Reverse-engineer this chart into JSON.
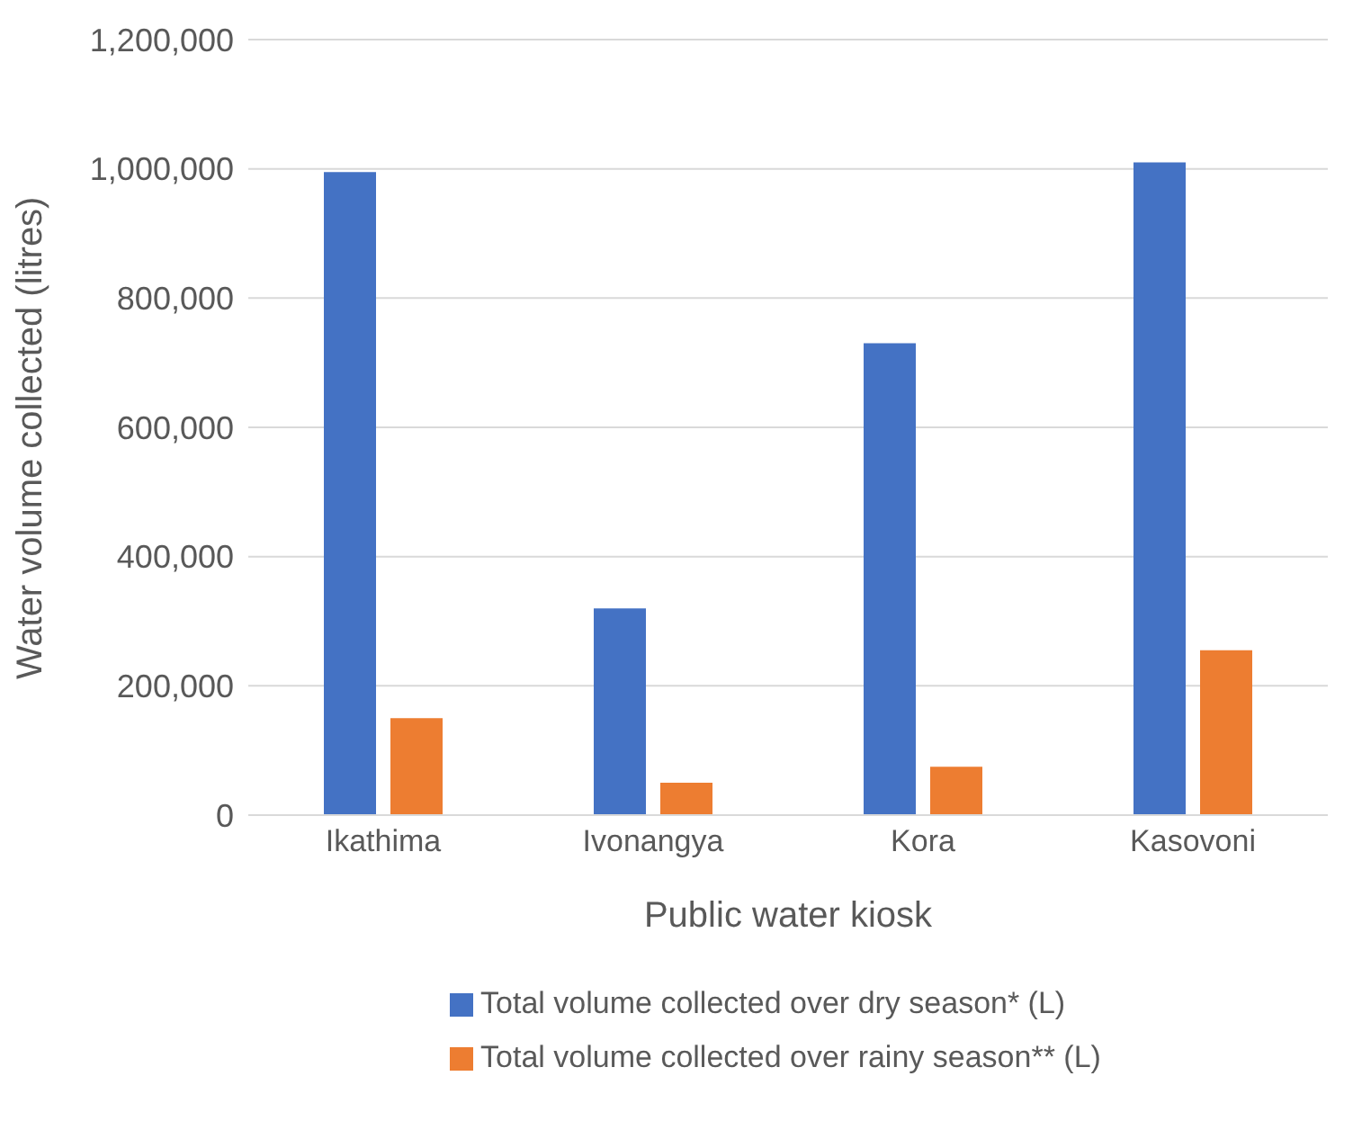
{
  "chart_data": {
    "type": "bar",
    "xlabel": "Public water kiosk",
    "ylabel": "Water volume collected (litres)",
    "categories": [
      "Ikathima",
      "Ivonangya",
      "Kora",
      "Kasovoni"
    ],
    "series": [
      {
        "name": "Total volume collected over dry season* (L)",
        "color": "#4472c4",
        "values": [
          995000,
          320000,
          730000,
          1010000
        ]
      },
      {
        "name": "Total volume collected over rainy season** (L)",
        "color": "#ed7d31",
        "values": [
          150000,
          50000,
          75000,
          255000
        ]
      }
    ],
    "ylim": [
      0,
      1200000
    ],
    "yticks": [
      0,
      {
        "value": 200000,
        "label": "200,000"
      },
      {
        "value": 400000,
        "label": "400,000"
      },
      {
        "value": 600000,
        "label": "600,000"
      },
      {
        "value": 800000,
        "label": "800,000"
      },
      {
        "value": 1000000,
        "label": "1,000,000"
      },
      {
        "value": 1200000,
        "label": "1,200,000"
      }
    ],
    "grid": "y",
    "legend": "bottom"
  }
}
